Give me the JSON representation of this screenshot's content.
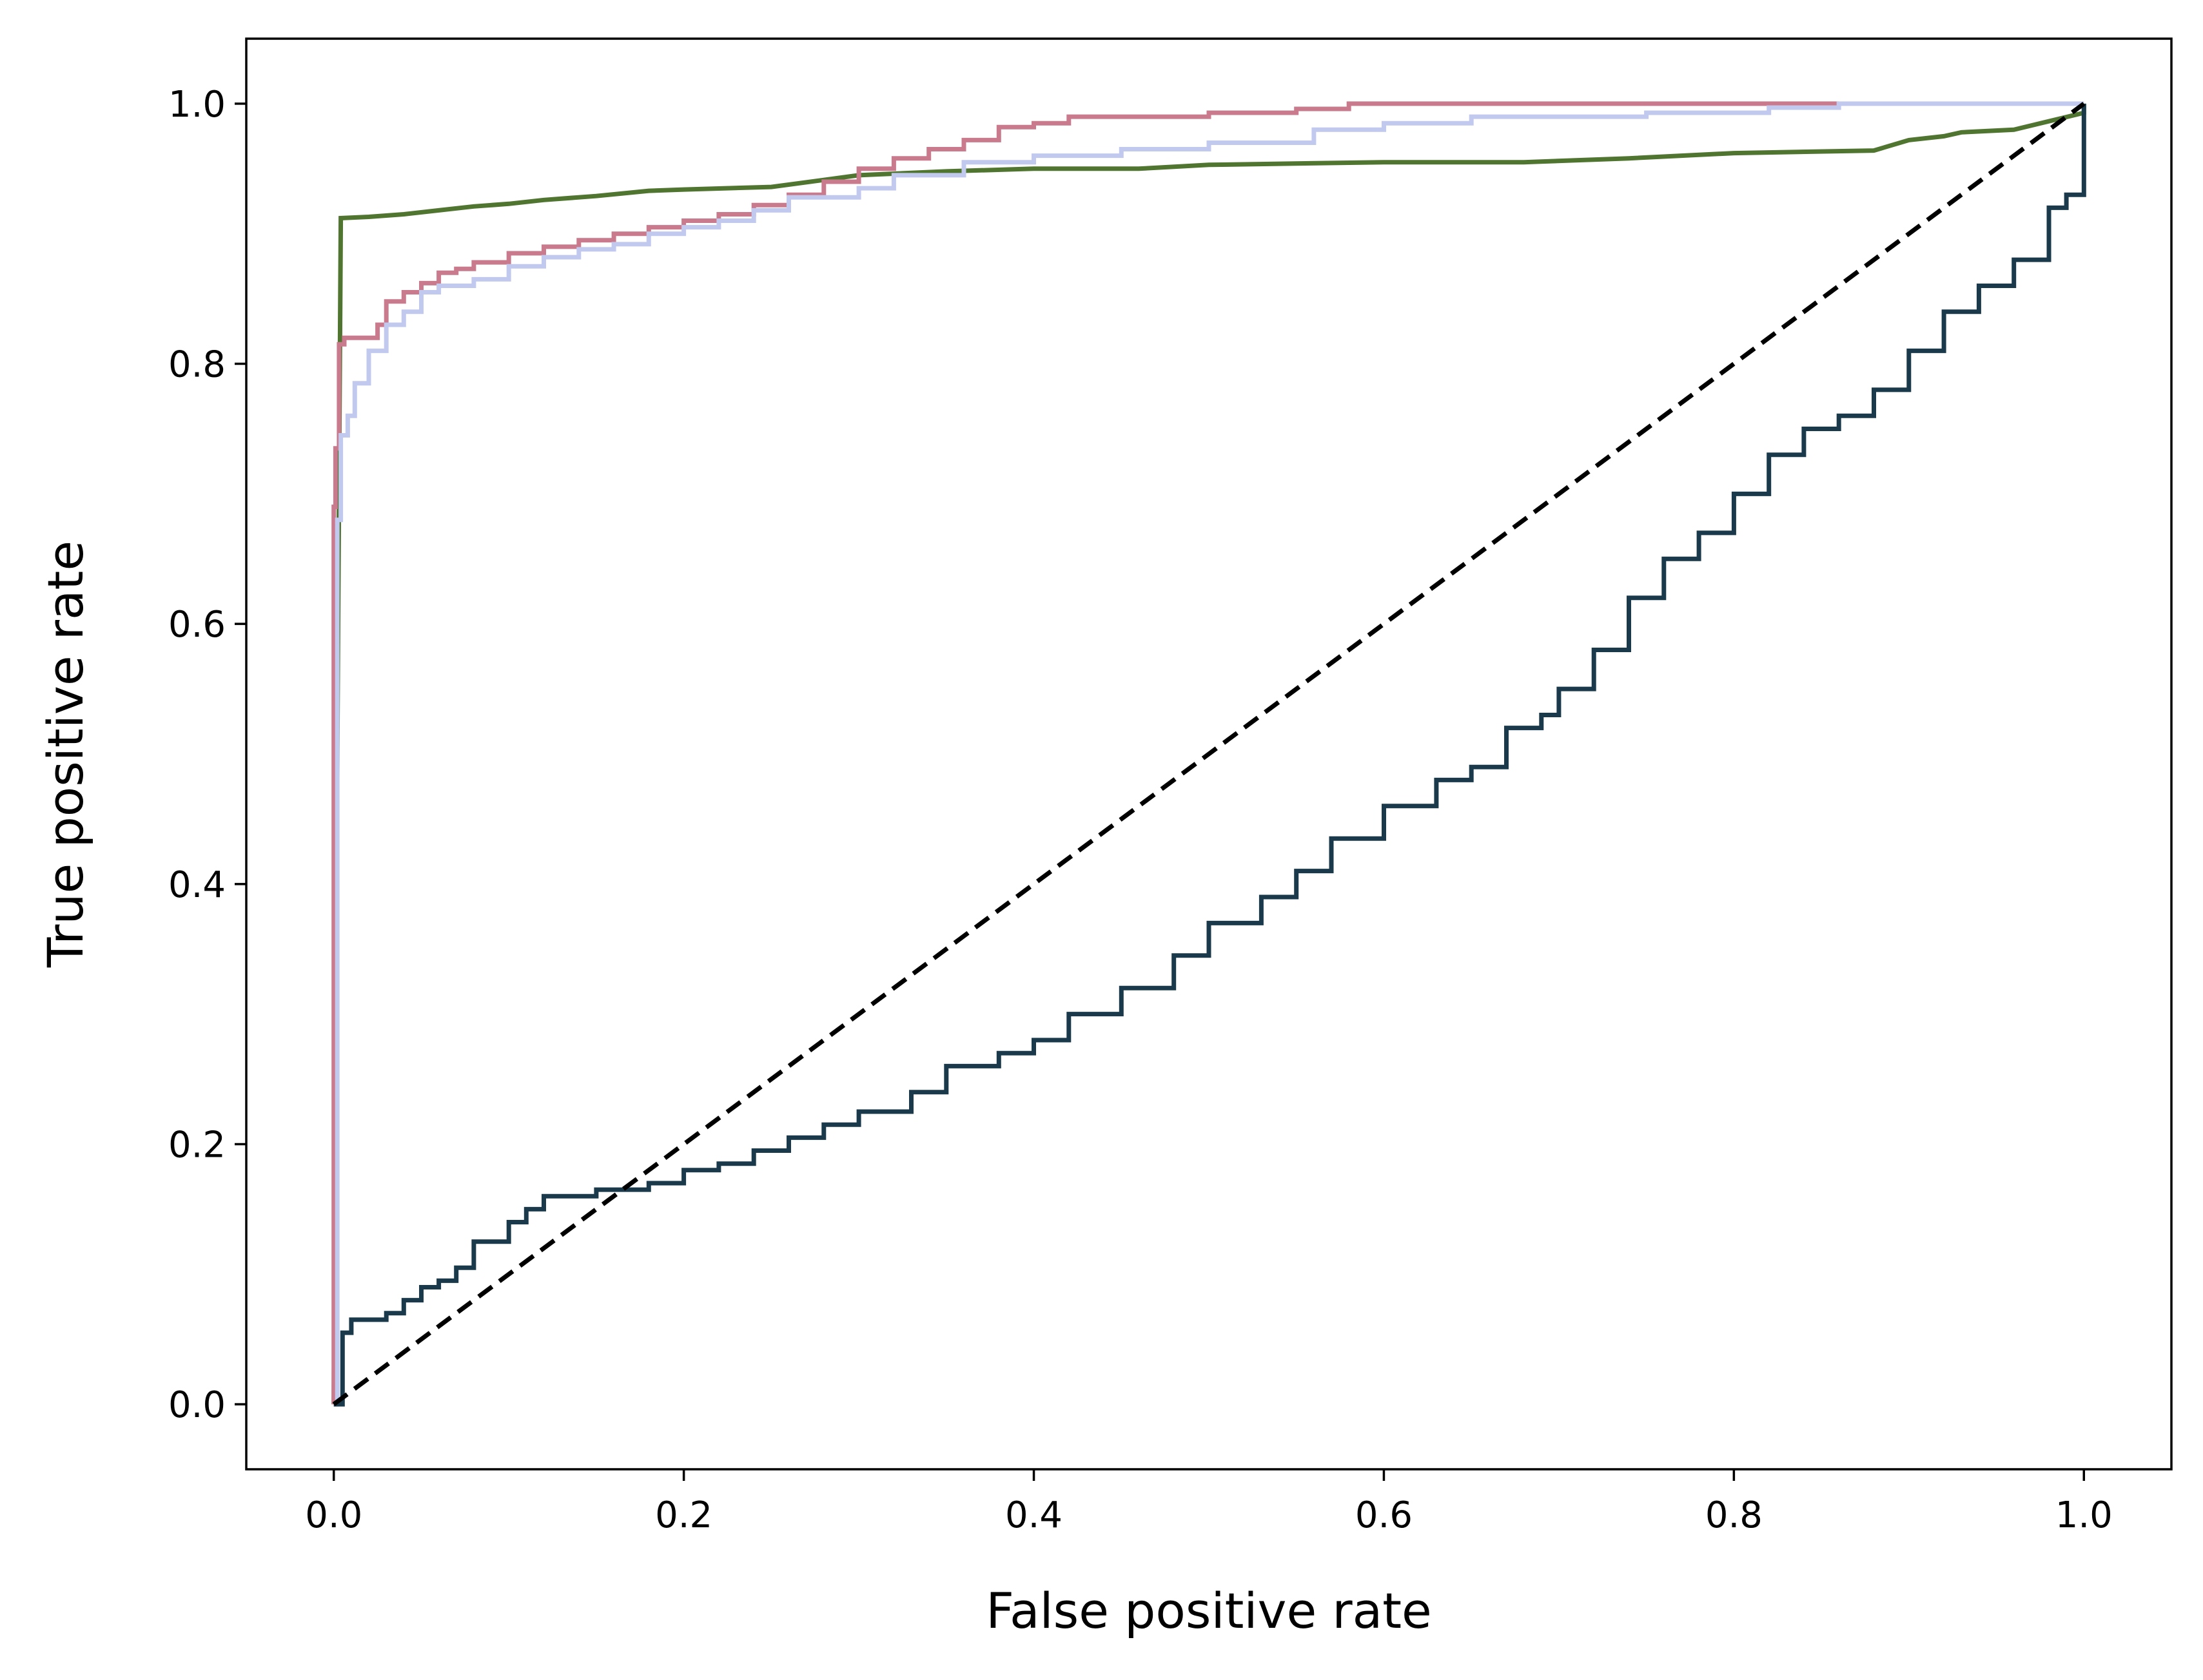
{
  "chart_data": {
    "type": "line",
    "title": "",
    "xlabel": "False positive rate",
    "ylabel": "True positive rate",
    "xlim": [
      -0.05,
      1.05
    ],
    "ylim": [
      -0.05,
      1.05
    ],
    "grid": false,
    "legend": "none",
    "x_ticks": [
      0.0,
      0.2,
      0.4,
      0.6,
      0.8,
      1.0
    ],
    "x_tick_labels": [
      "0.0",
      "0.2",
      "0.4",
      "0.6",
      "0.8",
      "1.0"
    ],
    "y_ticks": [
      0.0,
      0.2,
      0.4,
      0.6,
      0.8,
      1.0
    ],
    "y_tick_labels": [
      "0.0",
      "0.2",
      "0.4",
      "0.6",
      "0.8",
      "1.0"
    ],
    "series": [
      {
        "name": "green-roc",
        "color": "#4f7530",
        "step": false,
        "points": [
          [
            0,
            0
          ],
          [
            0.002,
            0.5
          ],
          [
            0.004,
            0.912
          ],
          [
            0.02,
            0.913
          ],
          [
            0.04,
            0.915
          ],
          [
            0.06,
            0.918
          ],
          [
            0.08,
            0.921
          ],
          [
            0.1,
            0.923
          ],
          [
            0.12,
            0.926
          ],
          [
            0.15,
            0.929
          ],
          [
            0.18,
            0.933
          ],
          [
            0.2,
            0.934
          ],
          [
            0.25,
            0.936
          ],
          [
            0.3,
            0.945
          ],
          [
            0.35,
            0.948
          ],
          [
            0.4,
            0.95
          ],
          [
            0.46,
            0.95
          ],
          [
            0.5,
            0.953
          ],
          [
            0.6,
            0.955
          ],
          [
            0.68,
            0.955
          ],
          [
            0.74,
            0.958
          ],
          [
            0.8,
            0.962
          ],
          [
            0.88,
            0.964
          ],
          [
            0.9,
            0.972
          ],
          [
            0.92,
            0.975
          ],
          [
            0.93,
            0.978
          ],
          [
            0.96,
            0.98
          ],
          [
            1.0,
            0.993
          ],
          [
            1.0,
            1.0
          ]
        ]
      },
      {
        "name": "pink-roc",
        "color": "#c97b8d",
        "step": true,
        "points": [
          [
            0,
            0
          ],
          [
            0,
            0.69
          ],
          [
            0.001,
            0.735
          ],
          [
            0.003,
            0.815
          ],
          [
            0.006,
            0.82
          ],
          [
            0.02,
            0.82
          ],
          [
            0.025,
            0.83
          ],
          [
            0.03,
            0.848
          ],
          [
            0.04,
            0.855
          ],
          [
            0.05,
            0.862
          ],
          [
            0.06,
            0.87
          ],
          [
            0.07,
            0.873
          ],
          [
            0.08,
            0.878
          ],
          [
            0.1,
            0.885
          ],
          [
            0.12,
            0.89
          ],
          [
            0.14,
            0.895
          ],
          [
            0.16,
            0.9
          ],
          [
            0.18,
            0.905
          ],
          [
            0.2,
            0.91
          ],
          [
            0.22,
            0.915
          ],
          [
            0.24,
            0.922
          ],
          [
            0.26,
            0.93
          ],
          [
            0.28,
            0.94
          ],
          [
            0.3,
            0.95
          ],
          [
            0.32,
            0.958
          ],
          [
            0.34,
            0.965
          ],
          [
            0.36,
            0.972
          ],
          [
            0.38,
            0.982
          ],
          [
            0.4,
            0.985
          ],
          [
            0.42,
            0.99
          ],
          [
            0.5,
            0.993
          ],
          [
            0.55,
            0.996
          ],
          [
            0.58,
            1.0
          ],
          [
            0.86,
            1.0
          ]
        ]
      },
      {
        "name": "lavender-roc",
        "color": "#c2c9ef",
        "step": true,
        "points": [
          [
            0,
            0
          ],
          [
            0.002,
            0.68
          ],
          [
            0.004,
            0.745
          ],
          [
            0.008,
            0.76
          ],
          [
            0.012,
            0.785
          ],
          [
            0.02,
            0.81
          ],
          [
            0.03,
            0.83
          ],
          [
            0.04,
            0.84
          ],
          [
            0.05,
            0.855
          ],
          [
            0.06,
            0.86
          ],
          [
            0.08,
            0.865
          ],
          [
            0.1,
            0.875
          ],
          [
            0.12,
            0.882
          ],
          [
            0.14,
            0.888
          ],
          [
            0.16,
            0.892
          ],
          [
            0.18,
            0.9
          ],
          [
            0.2,
            0.905
          ],
          [
            0.22,
            0.91
          ],
          [
            0.24,
            0.918
          ],
          [
            0.26,
            0.928
          ],
          [
            0.3,
            0.935
          ],
          [
            0.32,
            0.945
          ],
          [
            0.36,
            0.955
          ],
          [
            0.4,
            0.96
          ],
          [
            0.45,
            0.965
          ],
          [
            0.5,
            0.97
          ],
          [
            0.56,
            0.98
          ],
          [
            0.6,
            0.985
          ],
          [
            0.65,
            0.99
          ],
          [
            0.75,
            0.993
          ],
          [
            0.82,
            0.997
          ],
          [
            0.86,
            1.0
          ],
          [
            1.0,
            1.0
          ]
        ]
      },
      {
        "name": "navy-roc",
        "color": "#1a3a4c",
        "step": true,
        "points": [
          [
            0,
            0
          ],
          [
            0.005,
            0.055
          ],
          [
            0.01,
            0.065
          ],
          [
            0.03,
            0.07
          ],
          [
            0.04,
            0.08
          ],
          [
            0.05,
            0.09
          ],
          [
            0.06,
            0.095
          ],
          [
            0.07,
            0.105
          ],
          [
            0.08,
            0.125
          ],
          [
            0.1,
            0.14
          ],
          [
            0.11,
            0.15
          ],
          [
            0.12,
            0.16
          ],
          [
            0.15,
            0.165
          ],
          [
            0.18,
            0.17
          ],
          [
            0.2,
            0.18
          ],
          [
            0.22,
            0.185
          ],
          [
            0.24,
            0.195
          ],
          [
            0.26,
            0.205
          ],
          [
            0.28,
            0.215
          ],
          [
            0.3,
            0.225
          ],
          [
            0.33,
            0.24
          ],
          [
            0.35,
            0.26
          ],
          [
            0.38,
            0.27
          ],
          [
            0.4,
            0.28
          ],
          [
            0.42,
            0.3
          ],
          [
            0.45,
            0.32
          ],
          [
            0.48,
            0.345
          ],
          [
            0.5,
            0.37
          ],
          [
            0.53,
            0.39
          ],
          [
            0.55,
            0.41
          ],
          [
            0.57,
            0.435
          ],
          [
            0.6,
            0.46
          ],
          [
            0.63,
            0.48
          ],
          [
            0.65,
            0.49
          ],
          [
            0.67,
            0.52
          ],
          [
            0.69,
            0.53
          ],
          [
            0.7,
            0.55
          ],
          [
            0.72,
            0.58
          ],
          [
            0.74,
            0.62
          ],
          [
            0.76,
            0.65
          ],
          [
            0.78,
            0.67
          ],
          [
            0.8,
            0.7
          ],
          [
            0.82,
            0.73
          ],
          [
            0.84,
            0.75
          ],
          [
            0.86,
            0.76
          ],
          [
            0.88,
            0.78
          ],
          [
            0.9,
            0.81
          ],
          [
            0.92,
            0.84
          ],
          [
            0.94,
            0.86
          ],
          [
            0.96,
            0.88
          ],
          [
            0.98,
            0.92
          ],
          [
            0.99,
            0.93
          ],
          [
            1.0,
            0.94
          ],
          [
            1.0,
            1.0
          ]
        ]
      },
      {
        "name": "chance-line",
        "color": "#000000",
        "step": false,
        "dashed": true,
        "points": [
          [
            0,
            0
          ],
          [
            1,
            1
          ]
        ]
      }
    ]
  }
}
